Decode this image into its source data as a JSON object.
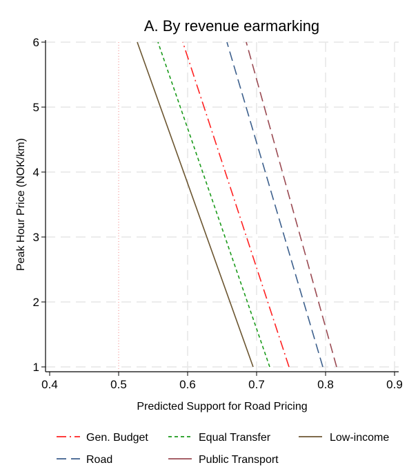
{
  "chart_data": {
    "type": "line",
    "title": "A. By revenue earmarking",
    "xlabel": "Predicted Support for Road Pricing",
    "ylabel": "Peak Hour Price (NOK/km)",
    "xlim": [
      0.4,
      0.9
    ],
    "ylim": [
      1,
      6
    ],
    "xticks": [
      0.4,
      0.5,
      0.6,
      0.7,
      0.8,
      0.9
    ],
    "xtick_labels": [
      "0.4",
      "0.5",
      "0.6",
      "0.7",
      "0.8",
      "0.9"
    ],
    "yticks": [
      1,
      2,
      3,
      4,
      5,
      6
    ],
    "ytick_labels": [
      "1",
      "2",
      "3",
      "4",
      "5",
      "6"
    ],
    "grid": true,
    "reference_line": {
      "x": 0.5,
      "color": "#f08080",
      "style": "dotted"
    },
    "legend_position": "bottom",
    "series": [
      {
        "name": "Gen. Budget",
        "color": "#ff2020",
        "style": "dash-dot",
        "x": [
          0.747,
          0.593
        ],
        "y": [
          1,
          6
        ]
      },
      {
        "name": "Equal Transfer",
        "color": "#1a9a1a",
        "style": "short-dash",
        "x": [
          0.719,
          0.557
        ],
        "y": [
          1,
          6
        ]
      },
      {
        "name": "Low-income",
        "color": "#6b5530",
        "style": "solid",
        "x": [
          0.695,
          0.527
        ],
        "y": [
          1,
          6
        ]
      },
      {
        "name": "Road",
        "color": "#3c5f8c",
        "style": "long-dash",
        "x": [
          0.796,
          0.657
        ],
        "y": [
          1,
          6
        ]
      },
      {
        "name": "Public Transport",
        "color": "#9a4a52",
        "style": "long-dash",
        "x": [
          0.816,
          0.685
        ],
        "y": [
          1,
          6
        ]
      }
    ]
  }
}
